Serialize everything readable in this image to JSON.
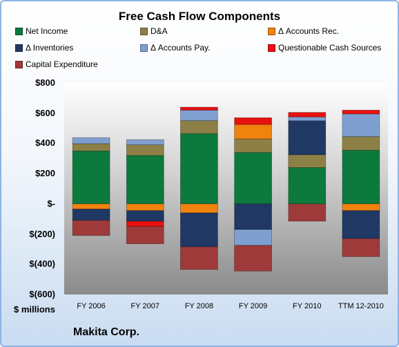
{
  "chart_data": {
    "type": "bar",
    "stacked": true,
    "title": "Free Cash Flow Components",
    "categories": [
      "FY 2006",
      "FY 2007",
      "FY 2008",
      "FY 2009",
      "FY 2010",
      "TTM 12-2010"
    ],
    "y_tick_labels": [
      "$800",
      "$600",
      "$400",
      "$200",
      "$-",
      "$(200)",
      "$(400)",
      "$(600)"
    ],
    "y_ticks": [
      800,
      600,
      400,
      200,
      0,
      -200,
      -400,
      -600
    ],
    "ylim": [
      -600,
      800
    ],
    "ylabel": "$ millions",
    "grid": false,
    "legend_position": "top",
    "series": [
      {
        "name": "Net Income",
        "color": "#0b7a3c",
        "values": [
          350,
          320,
          465,
          340,
          240,
          355
        ]
      },
      {
        "name": "D&A",
        "color": "#8c8046",
        "values": [
          48,
          70,
          85,
          90,
          85,
          90
        ]
      },
      {
        "name": "Δ Accounts Rec.",
        "color": "#f0820e",
        "values": [
          -35,
          -45,
          -60,
          95,
          0,
          -45
        ]
      },
      {
        "name": "Δ Inventories",
        "color": "#1f3864",
        "values": [
          -75,
          -70,
          -225,
          -170,
          225,
          -185
        ]
      },
      {
        "name": "Δ Accounts Pay.",
        "color": "#7f9fd0",
        "values": [
          40,
          35,
          70,
          -105,
          25,
          150
        ]
      },
      {
        "name": "Questionable Cash Sources",
        "color": "#e81010",
        "values": [
          0,
          -35,
          20,
          45,
          30,
          25
        ]
      },
      {
        "name": "Capital Expenditure",
        "color": "#9e3a3a",
        "values": [
          -100,
          -115,
          -150,
          -170,
          -115,
          -120
        ]
      }
    ]
  },
  "footer": {
    "units": "$ millions",
    "company": "Makita Corp."
  }
}
